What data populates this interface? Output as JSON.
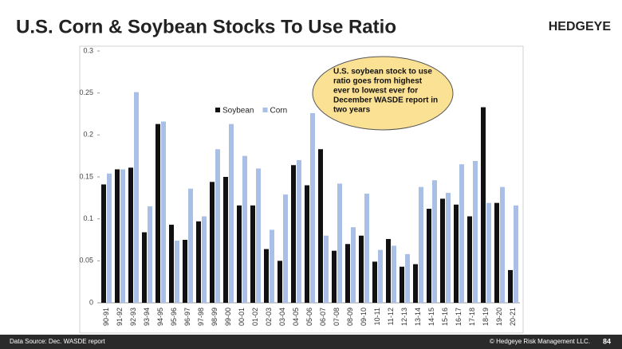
{
  "header": {
    "title": "U.S. Corn & Soybean Stocks To Use Ratio",
    "logo": "HEDGEYE"
  },
  "chart_data": {
    "type": "bar",
    "categories": [
      "90-91",
      "91-92",
      "92-93",
      "93-94",
      "94-95",
      "95-96",
      "96-97",
      "97-98",
      "98-99",
      "99-00",
      "00-01",
      "01-02",
      "02-03",
      "03-04",
      "04-05",
      "05-06",
      "06-07",
      "07-08",
      "08-09",
      "09-10",
      "10-11",
      "11-12",
      "12-13",
      "13-14",
      "14-15",
      "15-16",
      "16-17",
      "17-18",
      "18-19",
      "19-20",
      "20-21"
    ],
    "series": [
      {
        "name": "Soybean",
        "color": "#111111",
        "values": [
          0.141,
          0.159,
          0.161,
          0.084,
          0.213,
          0.093,
          0.075,
          0.097,
          0.144,
          0.15,
          0.116,
          0.116,
          0.064,
          0.05,
          0.164,
          0.14,
          0.183,
          0.062,
          0.07,
          0.08,
          0.049,
          0.076,
          0.043,
          0.046,
          0.112,
          0.124,
          0.117,
          0.103,
          0.233,
          0.119,
          0.039
        ]
      },
      {
        "name": "Corn",
        "color": "#a9bfe6",
        "values": [
          0.154,
          0.159,
          0.251,
          0.115,
          0.216,
          0.074,
          0.136,
          0.103,
          0.183,
          0.213,
          0.175,
          0.16,
          0.087,
          0.129,
          0.17,
          0.226,
          0.08,
          0.142,
          0.09,
          0.13,
          0.063,
          0.068,
          0.058,
          0.138,
          0.146,
          0.131,
          0.165,
          0.169,
          0.119,
          0.138,
          0.116
        ]
      }
    ],
    "ylim": [
      0,
      0.3
    ],
    "yticks": [
      0,
      0.05,
      0.1,
      0.15,
      0.2,
      0.25,
      0.3
    ],
    "legend": "top-left",
    "annotation": [
      "U.S. soybean stock to use",
      "ratio goes from highest",
      "ever to lowest ever for",
      "December WASDE report in",
      "two years"
    ]
  },
  "footer": {
    "source": "Data Source: Dec. WASDE report",
    "copyright": "© Hedgeye Risk Management LLC.",
    "page": "84"
  }
}
